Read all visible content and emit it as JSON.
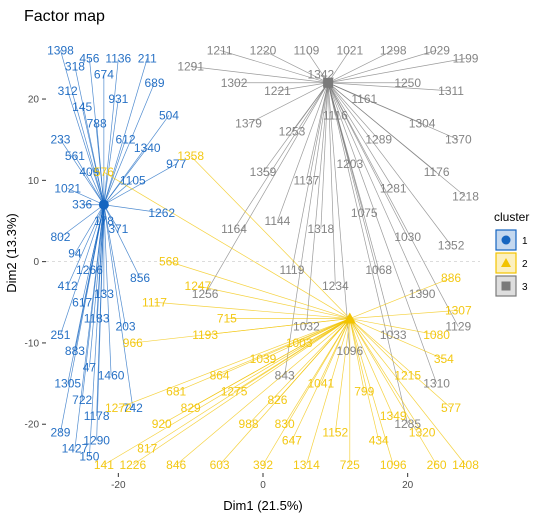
{
  "chart_data": {
    "type": "scatter",
    "title": "Factor map",
    "xlabel": "Dim1 (21.5%)",
    "ylabel": "Dim2 (13.3%)",
    "xlim": [
      -30,
      30
    ],
    "ylim": [
      -26,
      28
    ],
    "xticks": [
      -20,
      0,
      20
    ],
    "yticks": [
      -20,
      -10,
      0,
      10,
      20
    ],
    "grid": false,
    "legend": {
      "title": "cluster",
      "placement": "right",
      "entries": [
        {
          "label": "1",
          "color": "#1565c0",
          "marker": "circle"
        },
        {
          "label": "2",
          "color": "#f2c300",
          "marker": "triangle"
        },
        {
          "label": "3",
          "color": "#7a7a7a",
          "marker": "square"
        }
      ]
    },
    "series": [
      {
        "name": "1",
        "color": "#1565c0",
        "centroid": [
          -22,
          7
        ],
        "points": [
          [
            -28,
            26,
            "1398"
          ],
          [
            -26,
            24,
            "318"
          ],
          [
            -24,
            25,
            "456"
          ],
          [
            -22,
            23,
            "674"
          ],
          [
            -27,
            21,
            "312"
          ],
          [
            -25,
            19,
            "145"
          ],
          [
            -23,
            17,
            "788"
          ],
          [
            -28,
            15,
            "233"
          ],
          [
            -26,
            13,
            "561"
          ],
          [
            -24,
            11,
            "409"
          ],
          [
            -27,
            9,
            "1021"
          ],
          [
            -25,
            7,
            "336"
          ],
          [
            -22,
            5,
            "178"
          ],
          [
            -28,
            3,
            "802"
          ],
          [
            -26,
            1,
            "94"
          ],
          [
            -24,
            -1,
            "1266"
          ],
          [
            -27,
            -3,
            "412"
          ],
          [
            -25,
            -5,
            "617"
          ],
          [
            -23,
            -7,
            "1183"
          ],
          [
            -28,
            -9,
            "251"
          ],
          [
            -26,
            -11,
            "883"
          ],
          [
            -24,
            -13,
            "47"
          ],
          [
            -27,
            -15,
            "1305"
          ],
          [
            -25,
            -17,
            "722"
          ],
          [
            -23,
            -19,
            "1178"
          ],
          [
            -28,
            -21,
            "289"
          ],
          [
            -26,
            -23,
            "1427"
          ],
          [
            -24,
            -24,
            "150"
          ],
          [
            -20,
            20,
            "931"
          ],
          [
            -19,
            15,
            "612"
          ],
          [
            -18,
            10,
            "1105"
          ],
          [
            -20,
            4,
            "371"
          ],
          [
            -17,
            -2,
            "856"
          ],
          [
            -19,
            -8,
            "203"
          ],
          [
            -16,
            14,
            "1340"
          ],
          [
            -15,
            22,
            "689"
          ],
          [
            -13,
            18,
            "504"
          ],
          [
            -14,
            6,
            "1262"
          ],
          [
            -12,
            12,
            "977"
          ],
          [
            -22,
            -4,
            "133"
          ],
          [
            -21,
            -14,
            "1460"
          ],
          [
            -18,
            -18,
            "742"
          ],
          [
            -20,
            25,
            "1136"
          ],
          [
            -16,
            25,
            "211"
          ],
          [
            -23,
            -22,
            "1290"
          ]
        ]
      },
      {
        "name": "2",
        "color": "#f2c300",
        "centroid": [
          12,
          -7
        ],
        "points": [
          [
            -22,
            -25,
            "141"
          ],
          [
            -18,
            -25,
            "1226"
          ],
          [
            -12,
            -25,
            "846"
          ],
          [
            -6,
            -25,
            "603"
          ],
          [
            0,
            -25,
            "392"
          ],
          [
            6,
            -25,
            "1314"
          ],
          [
            12,
            -25,
            "725"
          ],
          [
            18,
            -25,
            "1096"
          ],
          [
            24,
            -25,
            "260"
          ],
          [
            28,
            -25,
            "1408"
          ],
          [
            -2,
            -20,
            "988"
          ],
          [
            4,
            -22,
            "647"
          ],
          [
            10,
            -21,
            "1152"
          ],
          [
            16,
            -22,
            "434"
          ],
          [
            22,
            -21,
            "1320"
          ],
          [
            26,
            -18,
            "577"
          ],
          [
            -4,
            -16,
            "1275"
          ],
          [
            2,
            -17,
            "826"
          ],
          [
            8,
            -15,
            "1041"
          ],
          [
            14,
            -16,
            "799"
          ],
          [
            20,
            -14,
            "1215"
          ],
          [
            25,
            -12,
            "354"
          ],
          [
            27,
            -6,
            "1307"
          ],
          [
            26,
            -2,
            "886"
          ],
          [
            24,
            -9,
            "1080"
          ],
          [
            -10,
            -18,
            "829"
          ],
          [
            -6,
            -14,
            "864"
          ],
          [
            0,
            -12,
            "1039"
          ],
          [
            5,
            -10,
            "1003"
          ],
          [
            -14,
            -20,
            "920"
          ],
          [
            -12,
            -16,
            "681"
          ],
          [
            -16,
            -23,
            "817"
          ],
          [
            -20,
            -18,
            "1272"
          ],
          [
            -18,
            -10,
            "966"
          ],
          [
            -15,
            -5,
            "1117"
          ],
          [
            -13,
            0,
            "568"
          ],
          [
            -9,
            -3,
            "1247"
          ],
          [
            -5,
            -7,
            "715"
          ],
          [
            -10,
            13,
            "1358"
          ],
          [
            -22,
            11,
            "576"
          ],
          [
            -8,
            -9,
            "1193"
          ],
          [
            3,
            -20,
            "830"
          ],
          [
            18,
            -19,
            "1349"
          ]
        ]
      },
      {
        "name": "3",
        "color": "#7a7a7a",
        "centroid": [
          9,
          22
        ],
        "points": [
          [
            -6,
            26,
            "1211"
          ],
          [
            0,
            26,
            "1220"
          ],
          [
            6,
            26,
            "1109"
          ],
          [
            12,
            26,
            "1021"
          ],
          [
            18,
            26,
            "1298"
          ],
          [
            24,
            26,
            "1029"
          ],
          [
            28,
            25,
            "1199"
          ],
          [
            -4,
            22,
            "1302"
          ],
          [
            2,
            21,
            "1221"
          ],
          [
            8,
            23,
            "1342"
          ],
          [
            14,
            20,
            "1161"
          ],
          [
            20,
            22,
            "1250"
          ],
          [
            26,
            21,
            "1311"
          ],
          [
            -2,
            17,
            "1379"
          ],
          [
            4,
            16,
            "1253"
          ],
          [
            10,
            18,
            "1116"
          ],
          [
            16,
            15,
            "1289"
          ],
          [
            22,
            17,
            "1304"
          ],
          [
            27,
            15,
            "1370"
          ],
          [
            0,
            11,
            "1359"
          ],
          [
            6,
            10,
            "1137"
          ],
          [
            12,
            12,
            "1203"
          ],
          [
            18,
            9,
            "1281"
          ],
          [
            24,
            11,
            "1176"
          ],
          [
            28,
            8,
            "1218"
          ],
          [
            2,
            5,
            "1144"
          ],
          [
            8,
            4,
            "1318"
          ],
          [
            14,
            6,
            "1075"
          ],
          [
            20,
            3,
            "1030"
          ],
          [
            26,
            2,
            "1352"
          ],
          [
            4,
            -1,
            "1119"
          ],
          [
            10,
            -3,
            "1234"
          ],
          [
            16,
            -1,
            "1068"
          ],
          [
            22,
            -4,
            "1390"
          ],
          [
            27,
            -8,
            "1129"
          ],
          [
            6,
            -8,
            "1032"
          ],
          [
            12,
            -11,
            "1096"
          ],
          [
            18,
            -9,
            "1033"
          ],
          [
            24,
            -15,
            "1310"
          ],
          [
            3,
            -14,
            "843"
          ],
          [
            -8,
            -4,
            "1256"
          ],
          [
            -4,
            4,
            "1164"
          ],
          [
            -10,
            24,
            "1291"
          ],
          [
            20,
            -20,
            "1285"
          ]
        ]
      }
    ]
  }
}
